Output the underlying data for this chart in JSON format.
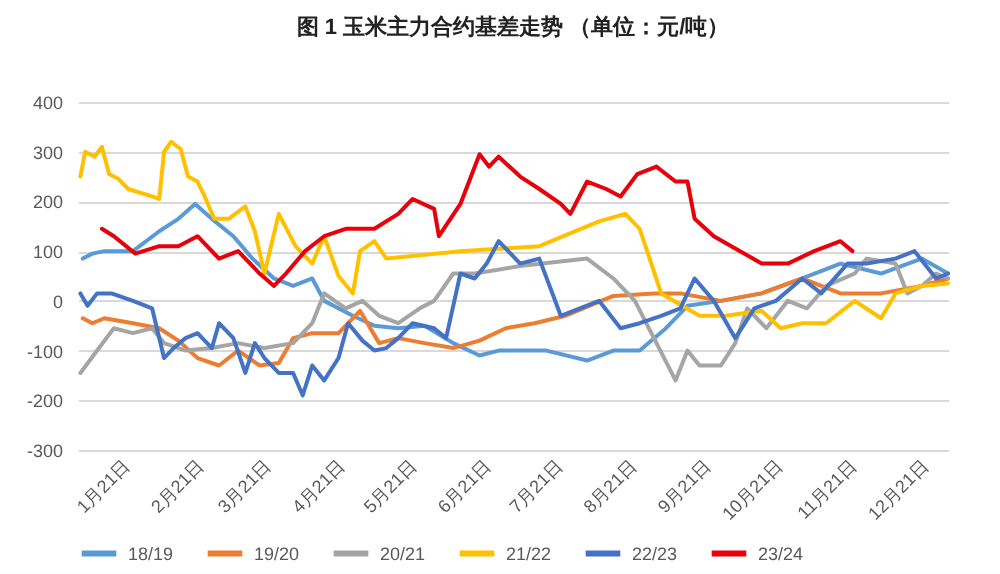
{
  "chart_data": {
    "type": "line",
    "title": "图 1  玉米主力合约基差走势  （单位：元/吨）",
    "xlim": [
      "--01-01",
      "--12-31"
    ],
    "xticks": [
      {
        "value": "--01-21",
        "label": "1月21日"
      },
      {
        "value": "--02-21",
        "label": "2月21日"
      },
      {
        "value": "--03-21",
        "label": "3月21日"
      },
      {
        "value": "--04-21",
        "label": "4月21日"
      },
      {
        "value": "--05-21",
        "label": "5月21日"
      },
      {
        "value": "--06-21",
        "label": "6月21日"
      },
      {
        "value": "--07-21",
        "label": "7月21日"
      },
      {
        "value": "--08-21",
        "label": "8月21日"
      },
      {
        "value": "--09-21",
        "label": "9月21日"
      },
      {
        "value": "--10-21",
        "label": "10月21日"
      },
      {
        "value": "--11-21",
        "label": "11月21日"
      },
      {
        "value": "--12-21",
        "label": "12月21日"
      }
    ],
    "ylim": [
      -300,
      400
    ],
    "yticks": [
      -300,
      -200,
      -100,
      0,
      100,
      200,
      300,
      400
    ],
    "grid": "y",
    "legend": "bottom",
    "series": [
      {
        "name": "18/19",
        "color": "#5b9bd5",
        "x": [
          "--01-03",
          "--01-07",
          "--01-12",
          "--01-24",
          "--02-04",
          "--02-12",
          "--02-19",
          "--02-26",
          "--03-07",
          "--03-15",
          "--03-24",
          "--04-01",
          "--04-09",
          "--04-14",
          "--04-26",
          "--05-05",
          "--05-15",
          "--05-26",
          "--06-07",
          "--06-18",
          "--06-26",
          "--07-07",
          "--07-16",
          "--08-02",
          "--08-13",
          "--08-24",
          "--09-04",
          "--09-13",
          "--09-27",
          "--10-14",
          "--10-31",
          "--11-16",
          "--12-03",
          "--12-20",
          "--12-31"
        ],
        "values": [
          85,
          95,
          100,
          100,
          140,
          165,
          195,
          165,
          130,
          85,
          45,
          30,
          45,
          0,
          -30,
          -50,
          -55,
          -50,
          -85,
          -110,
          -100,
          -100,
          -100,
          -120,
          -100,
          -100,
          -55,
          -10,
          0,
          15,
          45,
          75,
          55,
          85,
          55
        ]
      },
      {
        "name": "19/20",
        "color": "#ed7d31",
        "x": [
          "--01-03",
          "--01-07",
          "--01-12",
          "--01-24",
          "--02-04",
          "--02-12",
          "--02-20",
          "--03-01",
          "--03-09",
          "--03-18",
          "--03-26",
          "--04-01",
          "--04-09",
          "--04-20",
          "--04-29",
          "--05-07",
          "--05-15",
          "--05-26",
          "--06-07",
          "--06-18",
          "--06-29",
          "--07-11",
          "--07-24",
          "--08-13",
          "--08-30",
          "--09-10",
          "--09-27",
          "--10-14",
          "--10-31",
          "--11-16",
          "--12-03",
          "--12-20",
          "--12-31"
        ],
        "values": [
          -35,
          -45,
          -35,
          -45,
          -55,
          -80,
          -115,
          -130,
          -100,
          -130,
          -125,
          -75,
          -65,
          -65,
          -20,
          -85,
          -75,
          -85,
          -95,
          -80,
          -55,
          -45,
          -30,
          10,
          15,
          15,
          0,
          15,
          45,
          15,
          15,
          30,
          45
        ]
      },
      {
        "name": "20/21",
        "color": "#a5a5a5",
        "x": [
          "--01-02",
          "--01-09",
          "--01-16",
          "--01-24",
          "--02-01",
          "--02-06",
          "--02-15",
          "--02-26",
          "--03-09",
          "--03-20",
          "--04-01",
          "--04-09",
          "--04-14",
          "--04-23",
          "--04-30",
          "--05-07",
          "--05-15",
          "--05-24",
          "--05-30",
          "--06-07",
          "--06-16",
          "--07-05",
          "--08-02",
          "--08-13",
          "--08-22",
          "--09-08",
          "--09-13",
          "--09-18",
          "--09-27",
          "--10-03",
          "--10-08",
          "--10-16",
          "--10-25",
          "--11-02",
          "--11-10",
          "--11-22",
          "--11-27",
          "--12-09",
          "--12-14",
          "--12-20",
          "--12-26",
          "--12-31"
        ],
        "values": [
          -145,
          -100,
          -55,
          -65,
          -55,
          -85,
          -100,
          -95,
          -85,
          -95,
          -85,
          -45,
          15,
          -15,
          0,
          -30,
          -45,
          -15,
          0,
          55,
          55,
          70,
          85,
          45,
          0,
          -160,
          -100,
          -130,
          -130,
          -85,
          -15,
          -55,
          0,
          -15,
          30,
          55,
          85,
          75,
          15,
          30,
          55,
          45
        ]
      },
      {
        "name": "21/22",
        "color": "#ffc000",
        "x": [
          "--01-02",
          "--01-04",
          "--01-08",
          "--01-11",
          "--01-14",
          "--01-18",
          "--01-22",
          "--02-01",
          "--02-04",
          "--02-06",
          "--02-09",
          "--02-13",
          "--02-16",
          "--02-20",
          "--02-23",
          "--02-27",
          "--03-05",
          "--03-12",
          "--03-16",
          "--03-20",
          "--03-26",
          "--04-02",
          "--04-09",
          "--04-14",
          "--04-20",
          "--04-26",
          "--04-29",
          "--05-05",
          "--05-10",
          "--06-10",
          "--07-13",
          "--08-07",
          "--08-18",
          "--08-24",
          "--09-02",
          "--09-18",
          "--09-29",
          "--10-14",
          "--10-22",
          "--10-31",
          "--11-10",
          "--11-22",
          "--12-03",
          "--12-09",
          "--12-20",
          "--12-31"
        ],
        "values": [
          250,
          300,
          290,
          310,
          255,
          245,
          225,
          210,
          205,
          300,
          320,
          305,
          250,
          240,
          210,
          165,
          165,
          190,
          140,
          55,
          175,
          110,
          75,
          130,
          50,
          15,
          100,
          120,
          85,
          100,
          110,
          160,
          175,
          145,
          15,
          -30,
          -30,
          -20,
          -55,
          -45,
          -45,
          0,
          -35,
          15,
          30,
          35
        ]
      },
      {
        "name": "22/23",
        "color": "#4472c4",
        "x": [
          "--01-02",
          "--01-05",
          "--01-09",
          "--01-15",
          "--01-24",
          "--02-01",
          "--02-06",
          "--02-10",
          "--02-15",
          "--02-20",
          "--02-26",
          "--03-01",
          "--03-07",
          "--03-12",
          "--03-16",
          "--03-20",
          "--03-26",
          "--04-01",
          "--04-05",
          "--04-09",
          "--04-14",
          "--04-20",
          "--04-24",
          "--04-30",
          "--05-05",
          "--05-10",
          "--05-15",
          "--05-21",
          "--05-30",
          "--06-04",
          "--06-10",
          "--06-16",
          "--06-21",
          "--06-26",
          "--07-05",
          "--07-13",
          "--07-22",
          "--07-30",
          "--08-07",
          "--08-16",
          "--08-24",
          "--09-02",
          "--09-10",
          "--09-16",
          "--09-24",
          "--10-03",
          "--10-11",
          "--10-20",
          "--10-31",
          "--11-08",
          "--11-19",
          "--11-27",
          "--12-09",
          "--12-17",
          "--12-26",
          "--12-31"
        ],
        "values": [
          15,
          -10,
          15,
          15,
          0,
          -15,
          -115,
          -95,
          -75,
          -65,
          -95,
          -45,
          -75,
          -145,
          -85,
          -115,
          -145,
          -145,
          -190,
          -130,
          -160,
          -115,
          -45,
          -80,
          -100,
          -95,
          -75,
          -45,
          -55,
          -75,
          55,
          45,
          75,
          120,
          75,
          85,
          -30,
          -15,
          0,
          -55,
          -45,
          -30,
          -15,
          45,
          0,
          -75,
          -15,
          0,
          45,
          15,
          75,
          75,
          85,
          100,
          45,
          55
        ]
      },
      {
        "name": "23/24",
        "color": "#e8000b",
        "x": [
          "--01-11",
          "--01-16",
          "--01-25",
          "--02-04",
          "--02-12",
          "--02-20",
          "--03-01",
          "--03-09",
          "--03-18",
          "--03-24",
          "--03-29",
          "--04-06",
          "--04-14",
          "--04-23",
          "--05-05",
          "--05-15",
          "--05-21",
          "--05-30",
          "--06-01",
          "--06-10",
          "--06-18",
          "--06-22",
          "--06-26",
          "--07-05",
          "--07-13",
          "--07-22",
          "--07-26",
          "--08-02",
          "--08-10",
          "--08-16",
          "--08-23",
          "--08-31",
          "--09-08",
          "--09-13",
          "--09-16",
          "--09-24",
          "--10-05",
          "--10-14",
          "--10-25",
          "--11-05",
          "--11-16",
          "--11-21"
        ],
        "values": [
          145,
          130,
          95,
          110,
          110,
          130,
          85,
          100,
          55,
          30,
          55,
          100,
          130,
          145,
          145,
          175,
          205,
          185,
          130,
          195,
          295,
          270,
          290,
          250,
          225,
          195,
          175,
          240,
          225,
          210,
          255,
          270,
          240,
          240,
          165,
          130,
          100,
          75,
          75,
          100,
          120,
          100
        ]
      }
    ]
  }
}
